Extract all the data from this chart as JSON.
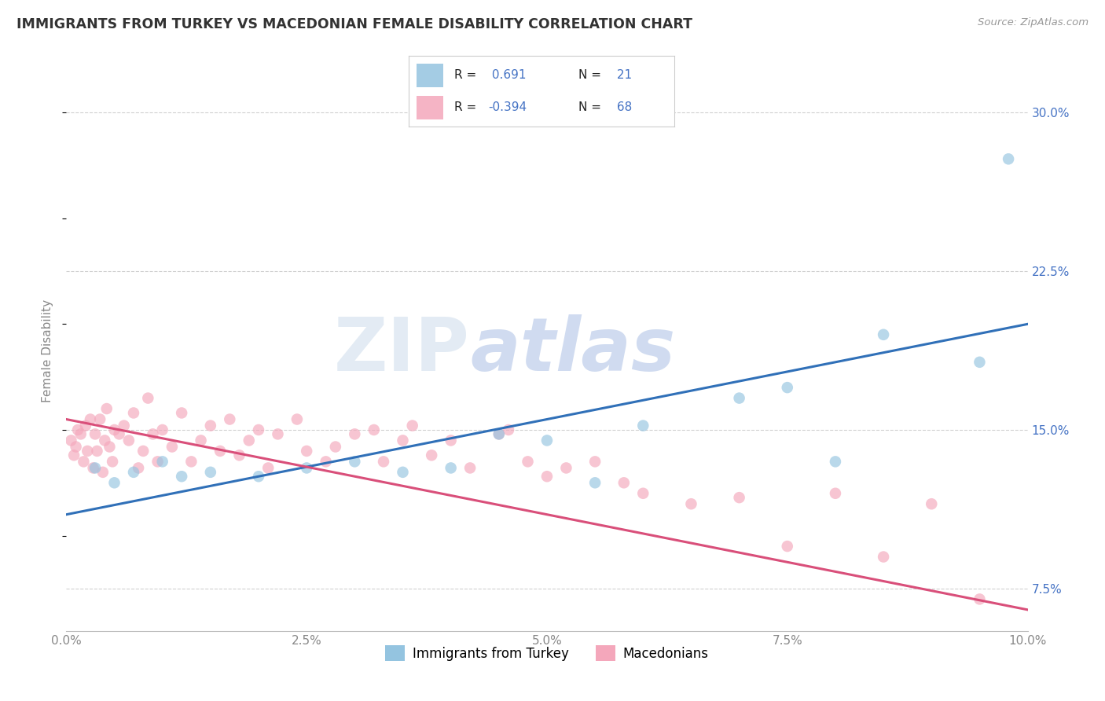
{
  "title": "IMMIGRANTS FROM TURKEY VS MACEDONIAN FEMALE DISABILITY CORRELATION CHART",
  "source": "Source: ZipAtlas.com",
  "ylabel": "Female Disability",
  "xlim": [
    0.0,
    10.0
  ],
  "ylim": [
    5.5,
    32.0
  ],
  "yticks_right": [
    7.5,
    15.0,
    22.5,
    30.0
  ],
  "xticks": [
    0.0,
    2.5,
    5.0,
    7.5,
    10.0
  ],
  "blue_color": "#94c4e0",
  "pink_color": "#f4a7bb",
  "blue_line_color": "#3070b8",
  "pink_line_color": "#d94f7a",
  "watermark_text": "ZIP",
  "watermark_text2": "atlas",
  "legend_label1": "Immigrants from Turkey",
  "legend_label2": "Macedonians",
  "legend_r1": "0.691",
  "legend_n1": "21",
  "legend_r2": "-0.394",
  "legend_n2": "68",
  "blue_scatter_x": [
    0.3,
    0.5,
    0.7,
    1.0,
    1.2,
    1.5,
    2.0,
    2.5,
    3.0,
    3.5,
    4.0,
    4.5,
    5.0,
    5.5,
    6.0,
    7.0,
    7.5,
    8.0,
    8.5,
    9.5,
    9.8
  ],
  "blue_scatter_y": [
    13.2,
    12.5,
    13.0,
    13.5,
    12.8,
    13.0,
    12.8,
    13.2,
    13.5,
    13.0,
    13.2,
    14.8,
    14.5,
    12.5,
    15.2,
    16.5,
    17.0,
    13.5,
    19.5,
    18.2,
    27.8
  ],
  "pink_scatter_x": [
    0.05,
    0.08,
    0.1,
    0.12,
    0.15,
    0.18,
    0.2,
    0.22,
    0.25,
    0.28,
    0.3,
    0.32,
    0.35,
    0.38,
    0.4,
    0.42,
    0.45,
    0.48,
    0.5,
    0.55,
    0.6,
    0.65,
    0.7,
    0.75,
    0.8,
    0.85,
    0.9,
    0.95,
    1.0,
    1.1,
    1.2,
    1.3,
    1.4,
    1.5,
    1.6,
    1.7,
    1.8,
    1.9,
    2.0,
    2.1,
    2.2,
    2.4,
    2.5,
    2.7,
    2.8,
    3.0,
    3.2,
    3.3,
    3.5,
    3.6,
    3.8,
    4.0,
    4.2,
    4.5,
    4.6,
    4.8,
    5.0,
    5.2,
    5.5,
    5.8,
    6.0,
    6.5,
    7.0,
    7.5,
    8.0,
    8.5,
    9.0,
    9.5
  ],
  "pink_scatter_y": [
    14.5,
    13.8,
    14.2,
    15.0,
    14.8,
    13.5,
    15.2,
    14.0,
    15.5,
    13.2,
    14.8,
    14.0,
    15.5,
    13.0,
    14.5,
    16.0,
    14.2,
    13.5,
    15.0,
    14.8,
    15.2,
    14.5,
    15.8,
    13.2,
    14.0,
    16.5,
    14.8,
    13.5,
    15.0,
    14.2,
    15.8,
    13.5,
    14.5,
    15.2,
    14.0,
    15.5,
    13.8,
    14.5,
    15.0,
    13.2,
    14.8,
    15.5,
    14.0,
    13.5,
    14.2,
    14.8,
    15.0,
    13.5,
    14.5,
    15.2,
    13.8,
    14.5,
    13.2,
    14.8,
    15.0,
    13.5,
    12.8,
    13.2,
    13.5,
    12.5,
    12.0,
    11.5,
    11.8,
    9.5,
    12.0,
    9.0,
    11.5,
    7.0
  ],
  "grid_color": "#d0d0d0",
  "bg_color": "#ffffff",
  "title_color": "#333333",
  "tick_color_blue": "#4472c4",
  "tick_color_gray": "#888888"
}
